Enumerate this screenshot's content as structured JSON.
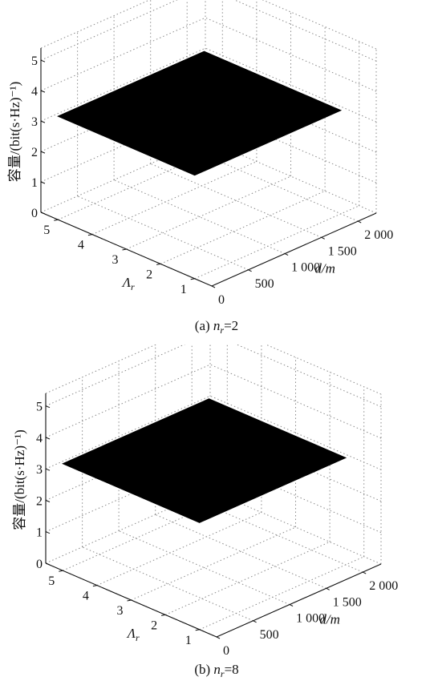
{
  "chart_data": [
    {
      "type": "surface",
      "panel": "a",
      "caption_prefix": "(a) ",
      "caption_var": "n",
      "caption_sub": "r",
      "caption_value": "=2",
      "zlabel": "容量/(bit(s·Hz)⁻¹)",
      "xlabel": "d/m",
      "ylabel_main": "Λ",
      "ylabel_sub": "r",
      "x_ticks": [
        "0",
        "500",
        "1 000",
        "1 500",
        "2 000"
      ],
      "y_ticks": [
        "1",
        "2",
        "3",
        "4",
        "5"
      ],
      "z_ticks": [
        "0",
        "1",
        "2",
        "3",
        "4",
        "5"
      ],
      "xlim": [
        0,
        2250
      ],
      "ylim": [
        0.5,
        5.5
      ],
      "zlim": [
        0,
        5.4
      ],
      "surface_value": 3.4,
      "surface_color": "#000000",
      "grid": true
    },
    {
      "type": "surface",
      "panel": "b",
      "caption_prefix": "(b) ",
      "caption_var": "n",
      "caption_sub": "r",
      "caption_value": "=8",
      "zlabel": "容量/(bit(s·Hz)⁻¹)",
      "xlabel": "d/m",
      "ylabel_main": "Λ",
      "ylabel_sub": "r",
      "x_ticks": [
        "0",
        "500",
        "1 000",
        "1 500",
        "2 000"
      ],
      "y_ticks": [
        "1",
        "2",
        "3",
        "4",
        "5"
      ],
      "z_ticks": [
        "0",
        "1",
        "2",
        "3",
        "4",
        "5"
      ],
      "xlim": [
        0,
        2250
      ],
      "ylim": [
        0.5,
        5.5
      ],
      "zlim": [
        0,
        5.4
      ],
      "surface_value": 3.4,
      "surface_color": "#000000",
      "grid": true
    }
  ]
}
